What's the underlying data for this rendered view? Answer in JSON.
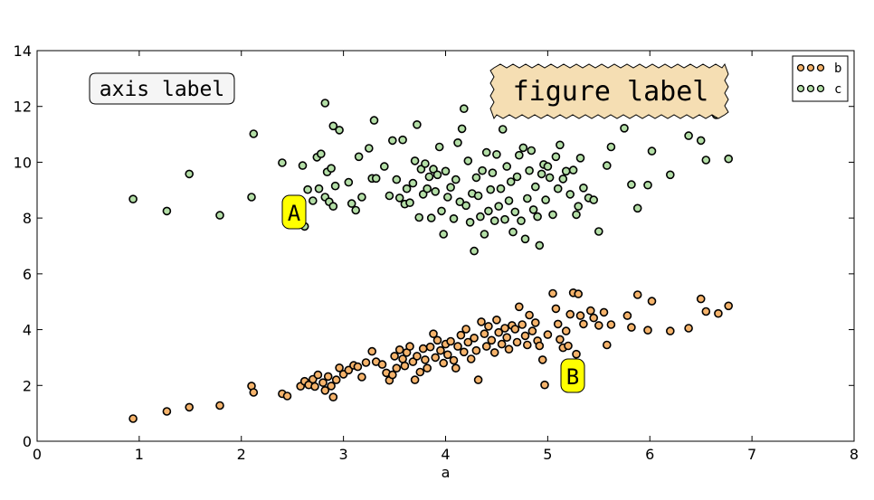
{
  "chart_data": {
    "type": "scatter",
    "xlabel": "a",
    "ylabel": "",
    "xlim": [
      0,
      8
    ],
    "ylim": [
      0,
      14
    ],
    "xticks": [
      "0",
      "1",
      "2",
      "3",
      "4",
      "5",
      "6",
      "7",
      "8"
    ],
    "yticks": [
      "0",
      "2",
      "4",
      "6",
      "8",
      "10",
      "12",
      "14"
    ],
    "grid": false,
    "legend_position": "top-right",
    "series": [
      {
        "name": "b",
        "color": "#f5b36b",
        "points": [
          [
            0.94,
            0.81
          ],
          [
            1.27,
            1.07
          ],
          [
            1.49,
            1.22
          ],
          [
            1.79,
            1.28
          ],
          [
            2.1,
            1.98
          ],
          [
            2.12,
            1.75
          ],
          [
            2.4,
            1.7
          ],
          [
            2.45,
            1.62
          ],
          [
            2.58,
            1.97
          ],
          [
            2.62,
            2.15
          ],
          [
            2.66,
            2.02
          ],
          [
            2.7,
            2.22
          ],
          [
            2.72,
            1.96
          ],
          [
            2.75,
            2.38
          ],
          [
            2.8,
            2.1
          ],
          [
            2.82,
            1.82
          ],
          [
            2.85,
            2.32
          ],
          [
            2.88,
            1.98
          ],
          [
            2.9,
            1.58
          ],
          [
            2.93,
            2.2
          ],
          [
            2.96,
            2.63
          ],
          [
            3.0,
            2.4
          ],
          [
            3.05,
            2.55
          ],
          [
            3.1,
            2.72
          ],
          [
            3.14,
            2.67
          ],
          [
            3.18,
            2.3
          ],
          [
            3.22,
            2.82
          ],
          [
            3.28,
            3.22
          ],
          [
            3.32,
            2.85
          ],
          [
            3.38,
            2.75
          ],
          [
            3.42,
            2.45
          ],
          [
            3.45,
            2.18
          ],
          [
            3.48,
            2.38
          ],
          [
            3.5,
            3.05
          ],
          [
            3.52,
            2.62
          ],
          [
            3.55,
            3.28
          ],
          [
            3.58,
            2.95
          ],
          [
            3.6,
            2.7
          ],
          [
            3.62,
            3.18
          ],
          [
            3.65,
            3.4
          ],
          [
            3.68,
            2.85
          ],
          [
            3.7,
            2.2
          ],
          [
            3.72,
            3.05
          ],
          [
            3.75,
            2.48
          ],
          [
            3.78,
            3.32
          ],
          [
            3.8,
            2.92
          ],
          [
            3.82,
            2.62
          ],
          [
            3.85,
            3.38
          ],
          [
            3.88,
            3.85
          ],
          [
            3.9,
            3.0
          ],
          [
            3.92,
            3.62
          ],
          [
            3.95,
            3.25
          ],
          [
            3.98,
            2.8
          ],
          [
            4.0,
            3.48
          ],
          [
            4.02,
            3.1
          ],
          [
            4.05,
            3.58
          ],
          [
            4.08,
            2.9
          ],
          [
            4.1,
            2.62
          ],
          [
            4.12,
            3.4
          ],
          [
            4.15,
            3.8
          ],
          [
            4.18,
            3.2
          ],
          [
            4.2,
            4.02
          ],
          [
            4.22,
            3.55
          ],
          [
            4.25,
            2.95
          ],
          [
            4.28,
            3.7
          ],
          [
            4.3,
            3.25
          ],
          [
            4.32,
            2.2
          ],
          [
            4.35,
            4.28
          ],
          [
            4.38,
            3.85
          ],
          [
            4.4,
            3.4
          ],
          [
            4.42,
            4.12
          ],
          [
            4.45,
            3.62
          ],
          [
            4.48,
            3.18
          ],
          [
            4.5,
            4.35
          ],
          [
            4.52,
            3.9
          ],
          [
            4.55,
            3.48
          ],
          [
            4.58,
            4.05
          ],
          [
            4.6,
            3.72
          ],
          [
            4.62,
            3.3
          ],
          [
            4.65,
            4.15
          ],
          [
            4.68,
            4.02
          ],
          [
            4.7,
            3.55
          ],
          [
            4.72,
            4.82
          ],
          [
            4.75,
            4.18
          ],
          [
            4.78,
            3.78
          ],
          [
            4.8,
            3.45
          ],
          [
            4.82,
            4.52
          ],
          [
            4.85,
            3.95
          ],
          [
            4.88,
            4.25
          ],
          [
            4.9,
            3.6
          ],
          [
            4.92,
            3.42
          ],
          [
            4.95,
            2.92
          ],
          [
            4.97,
            2.02
          ],
          [
            5.0,
            3.82
          ],
          [
            5.05,
            5.3
          ],
          [
            5.08,
            4.75
          ],
          [
            5.1,
            4.2
          ],
          [
            5.12,
            3.65
          ],
          [
            5.15,
            3.35
          ],
          [
            5.18,
            3.95
          ],
          [
            5.2,
            3.42
          ],
          [
            5.22,
            4.55
          ],
          [
            5.25,
            5.32
          ],
          [
            5.28,
            3.12
          ],
          [
            5.3,
            5.28
          ],
          [
            5.32,
            4.5
          ],
          [
            5.35,
            4.2
          ],
          [
            5.42,
            4.68
          ],
          [
            5.45,
            4.42
          ],
          [
            5.5,
            4.15
          ],
          [
            5.55,
            4.62
          ],
          [
            5.58,
            3.45
          ],
          [
            5.62,
            4.18
          ],
          [
            5.78,
            4.5
          ],
          [
            5.82,
            4.08
          ],
          [
            5.88,
            5.25
          ],
          [
            5.98,
            3.98
          ],
          [
            6.02,
            5.02
          ],
          [
            6.2,
            3.95
          ],
          [
            6.38,
            4.05
          ],
          [
            6.5,
            5.1
          ],
          [
            6.55,
            4.65
          ],
          [
            6.67,
            4.58
          ],
          [
            6.77,
            4.85
          ]
        ]
      },
      {
        "name": "c",
        "color": "#b3dea6",
        "points": [
          [
            0.94,
            8.68
          ],
          [
            1.27,
            8.25
          ],
          [
            1.49,
            9.58
          ],
          [
            1.79,
            8.1
          ],
          [
            2.1,
            8.75
          ],
          [
            2.12,
            11.02
          ],
          [
            2.4,
            9.98
          ],
          [
            2.6,
            9.88
          ],
          [
            2.65,
            9.02
          ],
          [
            2.7,
            8.62
          ],
          [
            2.74,
            10.18
          ],
          [
            2.76,
            9.05
          ],
          [
            2.78,
            10.3
          ],
          [
            2.82,
            8.75
          ],
          [
            2.84,
            9.65
          ],
          [
            2.86,
            8.58
          ],
          [
            2.88,
            9.78
          ],
          [
            2.9,
            8.42
          ],
          [
            2.92,
            9.15
          ],
          [
            2.82,
            12.12
          ],
          [
            2.9,
            11.3
          ],
          [
            2.96,
            11.15
          ],
          [
            3.05,
            9.28
          ],
          [
            3.08,
            8.52
          ],
          [
            3.12,
            8.28
          ],
          [
            3.15,
            10.2
          ],
          [
            3.18,
            8.75
          ],
          [
            3.25,
            10.5
          ],
          [
            3.28,
            9.42
          ],
          [
            3.3,
            11.5
          ],
          [
            3.32,
            9.42
          ],
          [
            3.4,
            9.85
          ],
          [
            3.45,
            8.8
          ],
          [
            3.48,
            10.78
          ],
          [
            3.52,
            9.38
          ],
          [
            3.55,
            8.72
          ],
          [
            3.58,
            10.8
          ],
          [
            3.6,
            8.5
          ],
          [
            3.62,
            9.05
          ],
          [
            3.65,
            8.55
          ],
          [
            3.68,
            9.25
          ],
          [
            3.7,
            10.05
          ],
          [
            3.72,
            11.35
          ],
          [
            3.74,
            8.02
          ],
          [
            3.76,
            9.75
          ],
          [
            3.78,
            8.85
          ],
          [
            3.8,
            9.95
          ],
          [
            3.82,
            9.05
          ],
          [
            3.84,
            9.48
          ],
          [
            3.86,
            8.0
          ],
          [
            3.88,
            9.75
          ],
          [
            3.9,
            8.95
          ],
          [
            3.92,
            9.55
          ],
          [
            3.94,
            10.55
          ],
          [
            3.96,
            8.25
          ],
          [
            3.98,
            7.42
          ],
          [
            4.0,
            9.68
          ],
          [
            4.02,
            8.75
          ],
          [
            4.05,
            9.1
          ],
          [
            4.08,
            7.98
          ],
          [
            4.1,
            9.38
          ],
          [
            4.12,
            10.7
          ],
          [
            4.14,
            8.58
          ],
          [
            4.16,
            11.2
          ],
          [
            4.18,
            11.92
          ],
          [
            4.2,
            8.45
          ],
          [
            4.22,
            10.05
          ],
          [
            4.24,
            7.85
          ],
          [
            4.26,
            8.88
          ],
          [
            4.28,
            6.82
          ],
          [
            4.3,
            9.45
          ],
          [
            4.32,
            8.8
          ],
          [
            4.34,
            8.05
          ],
          [
            4.36,
            9.7
          ],
          [
            4.38,
            7.42
          ],
          [
            4.4,
            10.35
          ],
          [
            4.42,
            8.25
          ],
          [
            4.44,
            9.02
          ],
          [
            4.46,
            9.62
          ],
          [
            4.48,
            7.9
          ],
          [
            4.5,
            10.28
          ],
          [
            4.52,
            8.42
          ],
          [
            4.54,
            9.05
          ],
          [
            4.56,
            11.18
          ],
          [
            4.58,
            7.95
          ],
          [
            4.6,
            9.85
          ],
          [
            4.62,
            8.62
          ],
          [
            4.64,
            9.3
          ],
          [
            4.66,
            7.5
          ],
          [
            4.68,
            8.22
          ],
          [
            4.7,
            9.48
          ],
          [
            4.72,
            10.25
          ],
          [
            4.74,
            7.9
          ],
          [
            4.76,
            10.52
          ],
          [
            4.78,
            7.25
          ],
          [
            4.8,
            8.7
          ],
          [
            4.82,
            9.7
          ],
          [
            4.84,
            10.42
          ],
          [
            4.86,
            8.3
          ],
          [
            4.88,
            9.12
          ],
          [
            4.9,
            8.05
          ],
          [
            4.92,
            7.02
          ],
          [
            4.94,
            9.58
          ],
          [
            4.96,
            9.92
          ],
          [
            4.98,
            8.65
          ],
          [
            5.0,
            9.85
          ],
          [
            5.02,
            9.45
          ],
          [
            5.05,
            8.12
          ],
          [
            5.08,
            10.2
          ],
          [
            5.1,
            9.05
          ],
          [
            5.12,
            10.62
          ],
          [
            5.15,
            9.4
          ],
          [
            5.18,
            9.68
          ],
          [
            5.22,
            8.85
          ],
          [
            5.25,
            9.72
          ],
          [
            5.28,
            8.12
          ],
          [
            5.3,
            8.42
          ],
          [
            5.32,
            10.15
          ],
          [
            5.35,
            9.08
          ],
          [
            5.4,
            8.72
          ],
          [
            5.45,
            8.65
          ],
          [
            5.5,
            7.52
          ],
          [
            5.58,
            9.88
          ],
          [
            5.62,
            10.55
          ],
          [
            5.75,
            11.22
          ],
          [
            5.82,
            9.2
          ],
          [
            5.88,
            8.35
          ],
          [
            5.98,
            9.18
          ],
          [
            6.02,
            10.4
          ],
          [
            6.2,
            9.55
          ],
          [
            6.38,
            10.95
          ],
          [
            6.5,
            10.78
          ],
          [
            6.55,
            10.08
          ],
          [
            6.65,
            11.7
          ],
          [
            6.77,
            10.12
          ],
          [
            2.62,
            7.7
          ]
        ]
      }
    ],
    "annotations": [
      {
        "text": "axis label",
        "x": 0.1,
        "y": 0.8,
        "coords": "axes",
        "style": "round",
        "facecolor": "#f5f5f5",
        "edgecolor": "#000000"
      },
      {
        "text": "figure label",
        "x": 0.6,
        "y": 0.8,
        "coords": "figure",
        "style": "sawtooth",
        "facecolor": "#f5deb3",
        "edgecolor": "#000000"
      },
      {
        "text": "A",
        "x": 2.55,
        "y": 8.1,
        "coords": "data",
        "style": "round",
        "facecolor": "#ffff00",
        "edgecolor": "#000000"
      },
      {
        "text": "B",
        "x": 5.25,
        "y": 2.3,
        "coords": "data",
        "style": "round",
        "facecolor": "#ffff00",
        "edgecolor": "#000000"
      }
    ]
  }
}
